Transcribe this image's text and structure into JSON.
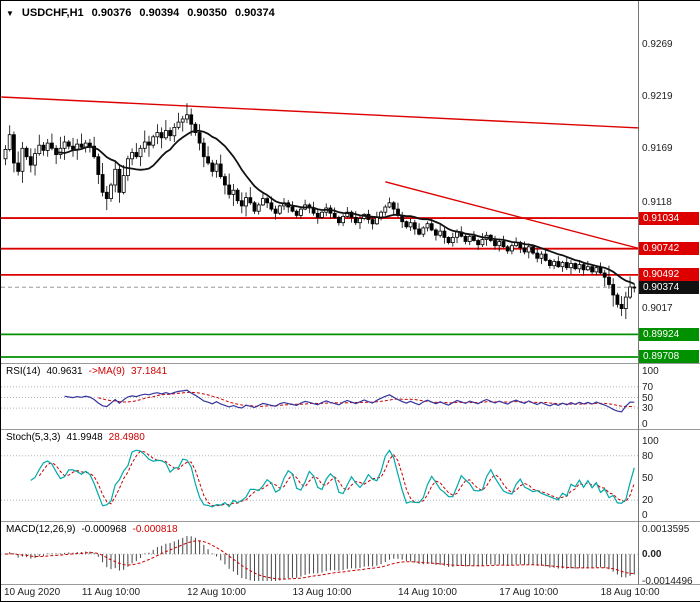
{
  "main_header": {
    "marker": "▼",
    "symbol": "USDCHF,H1",
    "open": "0.90376",
    "high": "0.90394",
    "low": "0.90350",
    "close": "0.90374"
  },
  "indicators": {
    "rsi": {
      "label": "RSI(14)",
      "value": "40.9631",
      "ma_label": "->MA(9)",
      "ma_value": "37.1841",
      "scale": [
        "100",
        "70",
        "50",
        "30",
        "0"
      ]
    },
    "stoch": {
      "label": "Stoch(5,3,3)",
      "value": "41.9948",
      "signal_value": "28.4980",
      "scale": [
        "100",
        "80",
        "50",
        "20",
        "0"
      ]
    },
    "macd": {
      "label": "MACD(12,26,9)",
      "value": "-0.000968",
      "signal_value": "-0.000818",
      "scale": [
        "0.0013595",
        "0.00",
        "-0.0014496"
      ]
    }
  },
  "chart_data": {
    "type": "candlestick",
    "symbol": "USDCHF",
    "timeframe": "H1",
    "title": "USDCHF,H1 0.90376 0.90394 0.90350 0.90374",
    "price_axis": [
      {
        "text": "0.9269",
        "price": 0.9269
      },
      {
        "text": "0.9219",
        "price": 0.9219
      },
      {
        "text": "0.9169",
        "price": 0.9169
      },
      {
        "text": "0.9118",
        "price": 0.9118
      },
      {
        "text": "0.9017",
        "price": 0.9017
      }
    ],
    "levels": [
      {
        "price": 0.91034,
        "label": "0.91034",
        "color": "#dd0000",
        "kind": "resistance"
      },
      {
        "price": 0.90742,
        "label": "0.90742",
        "color": "#dd0000",
        "kind": "resistance"
      },
      {
        "price": 0.90492,
        "label": "0.90492",
        "color": "#dd0000",
        "kind": "resistance"
      },
      {
        "price": 0.90374,
        "label": "0.90374",
        "color": "#111111",
        "kind": "current-price"
      },
      {
        "price": 0.89924,
        "label": "0.89924",
        "color": "#009000",
        "kind": "support"
      },
      {
        "price": 0.89708,
        "label": "0.89708",
        "color": "#009000",
        "kind": "support"
      }
    ],
    "trendlines": [
      {
        "x1_candle": -1,
        "price1": 0.9219,
        "x2_candle": 150,
        "price2": 0.91895,
        "color": "#dd0000"
      },
      {
        "x1_candle": 90,
        "price1": 0.9138,
        "x2_candle": 150,
        "price2": 0.90745,
        "color": "#dd0000"
      }
    ],
    "xaxis": {
      "labels": [
        "10 Aug 2020",
        "11 Aug 10:00",
        "12 Aug 10:00",
        "13 Aug 10:00",
        "14 Aug 10:00",
        "17 Aug 10:00",
        "18 Aug 10:00"
      ],
      "tick_candle_indices": [
        0,
        25,
        50,
        75,
        100,
        124,
        148
      ]
    },
    "macd_axis": {
      "max": 0.0013595,
      "min": -0.0014496
    },
    "indicator_params": {
      "rsi_period": 14,
      "rsi_ma": 9,
      "stoch": [
        5,
        3,
        3
      ],
      "macd": [
        12,
        26,
        9
      ]
    },
    "candles": {
      "first_open": 0.916,
      "close": [
        0.9169,
        0.9183,
        0.9156,
        0.9148,
        0.917,
        0.9162,
        0.9154,
        0.9165,
        0.9173,
        0.9168,
        0.9175,
        0.917,
        0.9164,
        0.917,
        0.9176,
        0.9172,
        0.9169,
        0.9174,
        0.9171,
        0.9175,
        0.9172,
        0.9162,
        0.9145,
        0.9128,
        0.9122,
        0.9135,
        0.915,
        0.9128,
        0.9144,
        0.916,
        0.9166,
        0.9162,
        0.917,
        0.9176,
        0.9173,
        0.9181,
        0.9185,
        0.918,
        0.9187,
        0.9182,
        0.919,
        0.9195,
        0.9198,
        0.9202,
        0.9193,
        0.9185,
        0.9175,
        0.9162,
        0.9156,
        0.9148,
        0.9155,
        0.9143,
        0.9135,
        0.9126,
        0.913,
        0.912,
        0.9115,
        0.9123,
        0.9118,
        0.911,
        0.9116,
        0.9122,
        0.9118,
        0.9112,
        0.9108,
        0.9115,
        0.9118,
        0.9114,
        0.911,
        0.9106,
        0.9112,
        0.9116,
        0.9113,
        0.9108,
        0.9104,
        0.9109,
        0.9113,
        0.9108,
        0.9104,
        0.9099,
        0.9105,
        0.9109,
        0.9104,
        0.9099,
        0.9103,
        0.9107,
        0.9102,
        0.9098,
        0.9104,
        0.9109,
        0.9114,
        0.9118,
        0.9112,
        0.9106,
        0.91,
        0.9095,
        0.9099,
        0.9093,
        0.9088,
        0.9094,
        0.9098,
        0.9092,
        0.9087,
        0.9091,
        0.9085,
        0.908,
        0.9085,
        0.909,
        0.9086,
        0.9081,
        0.9086,
        0.9082,
        0.9078,
        0.9083,
        0.9087,
        0.9082,
        0.9077,
        0.9081,
        0.9076,
        0.9072,
        0.9077,
        0.908,
        0.9075,
        0.9071,
        0.9076,
        0.907,
        0.9065,
        0.9069,
        0.9063,
        0.9058,
        0.9062,
        0.9057,
        0.9061,
        0.9056,
        0.906,
        0.9055,
        0.9059,
        0.9054,
        0.9057,
        0.9052,
        0.9056,
        0.9051,
        0.9047,
        0.904,
        0.903,
        0.9021,
        0.9017,
        0.9028,
        0.90376,
        0.90374
      ],
      "wick_cycle_high": [
        0.0004,
        0.0009,
        0.0003,
        0.0011,
        0.0006,
        0.0002,
        0.0008,
        0.0005,
        0.001,
        0.0003
      ],
      "wick_cycle_low": [
        0.0006,
        0.0002,
        0.0009,
        0.0004,
        0.0011,
        0.0003,
        0.0007,
        0.001,
        0.0002,
        0.0005
      ]
    }
  }
}
